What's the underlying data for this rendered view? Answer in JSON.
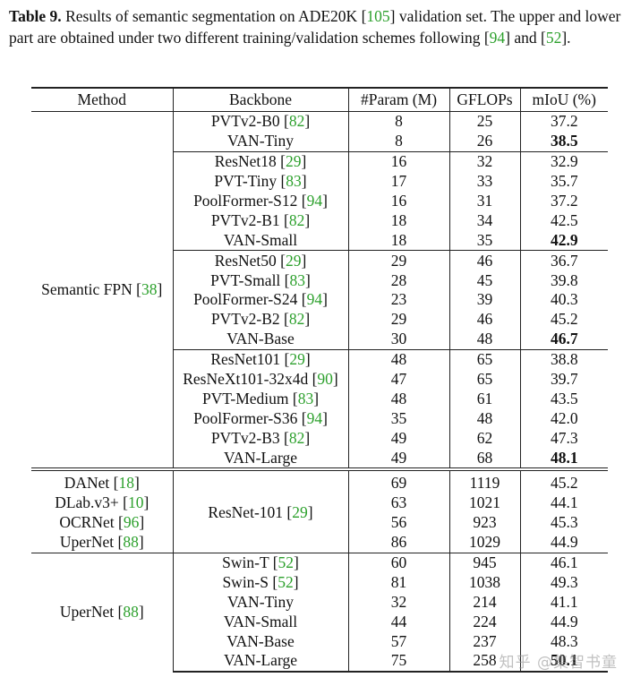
{
  "caption": {
    "label": "Table 9.",
    "text_before_c1": "Results of semantic segmentation on ADE20K [",
    "c1": "105",
    "text_after_c1": "] validation set. The upper and lower part are obtained under two different training/validation schemes following [",
    "c2": "94",
    "text_between": "] and [",
    "c3": "52",
    "text_end": "]."
  },
  "headers": [
    "Method",
    "Backbone",
    "#Param (M)",
    "GFLOPs",
    "mIoU (%)"
  ],
  "upper": {
    "method": "Semantic FPN",
    "method_cite": "38",
    "groups": [
      [
        {
          "backbone": "PVTv2-B0",
          "cite": "82",
          "param": "8",
          "gflops": "25",
          "miou": "37.2",
          "best": false
        },
        {
          "backbone": "VAN-Tiny",
          "cite": "",
          "param": "8",
          "gflops": "26",
          "miou": "38.5",
          "best": true
        }
      ],
      [
        {
          "backbone": "ResNet18",
          "cite": "29",
          "param": "16",
          "gflops": "32",
          "miou": "32.9",
          "best": false
        },
        {
          "backbone": "PVT-Tiny",
          "cite": "83",
          "param": "17",
          "gflops": "33",
          "miou": "35.7",
          "best": false
        },
        {
          "backbone": "PoolFormer-S12",
          "cite": "94",
          "param": "16",
          "gflops": "31",
          "miou": "37.2",
          "best": false
        },
        {
          "backbone": "PVTv2-B1",
          "cite": "82",
          "param": "18",
          "gflops": "34",
          "miou": "42.5",
          "best": false
        },
        {
          "backbone": "VAN-Small",
          "cite": "",
          "param": "18",
          "gflops": "35",
          "miou": "42.9",
          "best": true
        }
      ],
      [
        {
          "backbone": "ResNet50",
          "cite": "29",
          "param": "29",
          "gflops": "46",
          "miou": "36.7",
          "best": false
        },
        {
          "backbone": "PVT-Small",
          "cite": "83",
          "param": "28",
          "gflops": "45",
          "miou": "39.8",
          "best": false
        },
        {
          "backbone": "PoolFormer-S24",
          "cite": "94",
          "param": "23",
          "gflops": "39",
          "miou": "40.3",
          "best": false
        },
        {
          "backbone": "PVTv2-B2",
          "cite": "82",
          "param": "29",
          "gflops": "46",
          "miou": "45.2",
          "best": false
        },
        {
          "backbone": "VAN-Base",
          "cite": "",
          "param": "30",
          "gflops": "48",
          "miou": "46.7",
          "best": true
        }
      ],
      [
        {
          "backbone": "ResNet101",
          "cite": "29",
          "param": "48",
          "gflops": "65",
          "miou": "38.8",
          "best": false
        },
        {
          "backbone": "ResNeXt101-32x4d",
          "cite": "90",
          "param": "47",
          "gflops": "65",
          "miou": "39.7",
          "best": false
        },
        {
          "backbone": "PVT-Medium",
          "cite": "83",
          "param": "48",
          "gflops": "61",
          "miou": "43.5",
          "best": false
        },
        {
          "backbone": "PoolFormer-S36",
          "cite": "94",
          "param": "35",
          "gflops": "48",
          "miou": "42.0",
          "best": false
        },
        {
          "backbone": "PVTv2-B3",
          "cite": "82",
          "param": "49",
          "gflops": "62",
          "miou": "47.3",
          "best": false
        },
        {
          "backbone": "VAN-Large",
          "cite": "",
          "param": "49",
          "gflops": "68",
          "miou": "48.1",
          "best": true
        }
      ]
    ]
  },
  "lower_a": {
    "backbone": "ResNet-101",
    "backbone_cite": "29",
    "rows": [
      {
        "method": "DANet",
        "cite": "18",
        "param": "69",
        "gflops": "1119",
        "miou": "45.2"
      },
      {
        "method": "DLab.v3+",
        "cite": "10",
        "param": "63",
        "gflops": "1021",
        "miou": "44.1"
      },
      {
        "method": "OCRNet",
        "cite": "96",
        "param": "56",
        "gflops": "923",
        "miou": "45.3"
      },
      {
        "method": "UperNet",
        "cite": "88",
        "param": "86",
        "gflops": "1029",
        "miou": "44.9"
      }
    ]
  },
  "lower_b": {
    "method": "UperNet",
    "method_cite": "88",
    "rows": [
      {
        "backbone": "Swin-T",
        "cite": "52",
        "param": "60",
        "gflops": "945",
        "miou": "46.1",
        "best": false
      },
      {
        "backbone": "Swin-S",
        "cite": "52",
        "param": "81",
        "gflops": "1038",
        "miou": "49.3",
        "best": false
      },
      {
        "backbone": "VAN-Tiny",
        "cite": "",
        "param": "32",
        "gflops": "214",
        "miou": "41.1",
        "best": false
      },
      {
        "backbone": "VAN-Small",
        "cite": "",
        "param": "44",
        "gflops": "224",
        "miou": "44.9",
        "best": false
      },
      {
        "backbone": "VAN-Base",
        "cite": "",
        "param": "57",
        "gflops": "237",
        "miou": "48.3",
        "best": false
      },
      {
        "backbone": "VAN-Large",
        "cite": "",
        "param": "75",
        "gflops": "258",
        "miou": "50.1",
        "best": true
      }
    ]
  },
  "watermark": "知乎 @集智书童",
  "colors": {
    "citation": "#2ca02c",
    "rule": "#222222",
    "text": "#111111"
  }
}
